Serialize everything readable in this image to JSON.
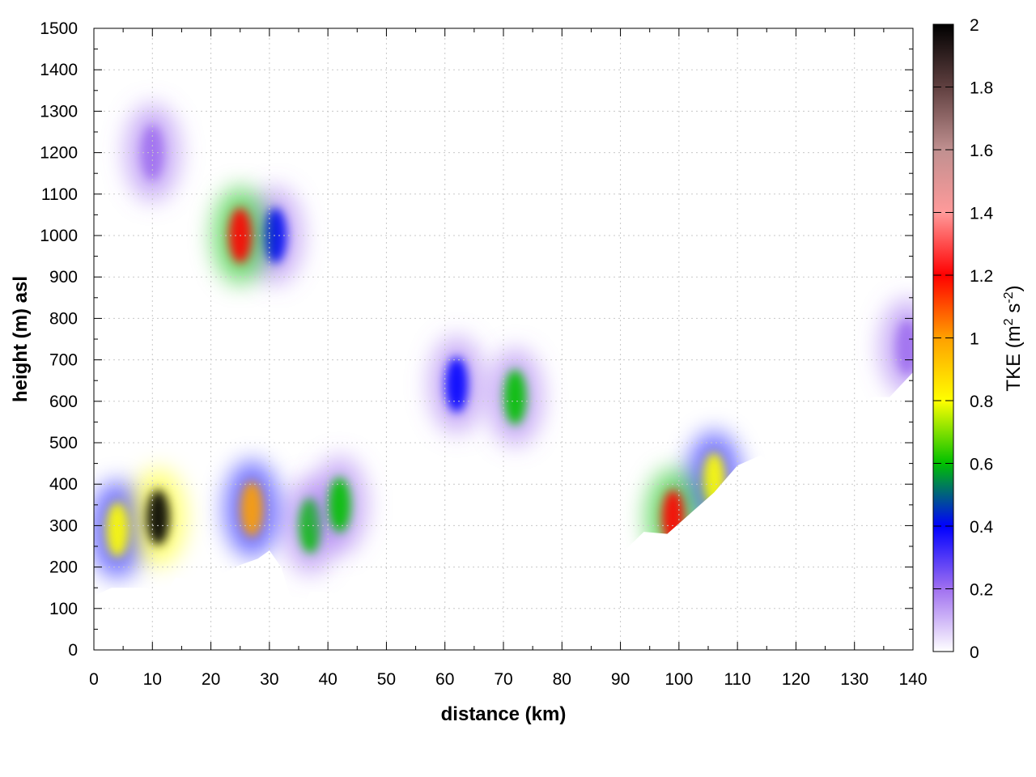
{
  "chart_data": {
    "type": "heatmap",
    "xlabel": "distance (km)",
    "ylabel": "height (m) asl",
    "colorbar_label": "TKE (m² s⁻²)",
    "colorbar_label_parts": {
      "base": "TKE (m",
      "sup1": "2",
      "mid": " s",
      "sup2": "-2",
      "end": ")"
    },
    "xlim": [
      0,
      140
    ],
    "ylim": [
      0,
      1500
    ],
    "clim": [
      0,
      2
    ],
    "x_ticks": [
      "0",
      "10",
      "20",
      "30",
      "40",
      "50",
      "60",
      "70",
      "80",
      "90",
      "100",
      "110",
      "120",
      "130",
      "140"
    ],
    "y_ticks": [
      "0",
      "100",
      "200",
      "300",
      "400",
      "500",
      "600",
      "700",
      "800",
      "900",
      "1000",
      "1100",
      "1200",
      "1300",
      "1400",
      "1500"
    ],
    "cb_ticks": [
      "0",
      "0.2",
      "0.4",
      "0.6",
      "0.8",
      "1",
      "1.2",
      "1.4",
      "1.6",
      "1.8",
      "2"
    ],
    "grid": true,
    "colormap": [
      {
        "v": 0.0,
        "color": "#ffffff"
      },
      {
        "v": 0.2,
        "color": "#a070f0"
      },
      {
        "v": 0.4,
        "color": "#0000ff"
      },
      {
        "v": 0.6,
        "color": "#00c000"
      },
      {
        "v": 0.8,
        "color": "#ffff00"
      },
      {
        "v": 1.0,
        "color": "#ffa000"
      },
      {
        "v": 1.2,
        "color": "#ff0000"
      },
      {
        "v": 1.4,
        "color": "#ff9a9a"
      },
      {
        "v": 1.6,
        "color": "#c09090"
      },
      {
        "v": 1.8,
        "color": "#604040"
      },
      {
        "v": 2.0,
        "color": "#000000"
      }
    ],
    "terrain_height_m": [
      [
        0,
        130
      ],
      [
        3,
        150
      ],
      [
        6,
        150
      ],
      [
        9,
        150
      ],
      [
        12,
        130
      ],
      [
        14,
        175
      ],
      [
        16,
        170
      ],
      [
        18,
        140
      ],
      [
        20,
        170
      ],
      [
        22,
        185
      ],
      [
        25,
        205
      ],
      [
        28,
        220
      ],
      [
        30,
        240
      ],
      [
        32,
        200
      ],
      [
        34,
        110
      ],
      [
        35,
        90
      ],
      [
        37,
        140
      ],
      [
        40,
        140
      ],
      [
        44,
        130
      ],
      [
        47,
        135
      ],
      [
        50,
        115
      ],
      [
        52,
        130
      ],
      [
        55,
        140
      ],
      [
        58,
        150
      ],
      [
        61,
        150
      ],
      [
        64,
        150
      ],
      [
        67,
        165
      ],
      [
        70,
        165
      ],
      [
        74,
        168
      ],
      [
        78,
        175
      ],
      [
        82,
        195
      ],
      [
        86,
        215
      ],
      [
        90,
        230
      ],
      [
        94,
        285
      ],
      [
        98,
        280
      ],
      [
        102,
        330
      ],
      [
        106,
        380
      ],
      [
        110,
        445
      ],
      [
        114,
        470
      ],
      [
        118,
        420
      ],
      [
        121,
        440
      ],
      [
        125,
        525
      ],
      [
        128,
        530
      ],
      [
        131,
        590
      ],
      [
        133,
        610
      ],
      [
        136,
        610
      ],
      [
        140,
        670
      ]
    ],
    "tke_features": [
      {
        "x_km": 11,
        "z_m": 320,
        "value": 2.0
      },
      {
        "x_km": 4,
        "z_m": 290,
        "value": 0.9
      },
      {
        "x_km": 25,
        "z_m": 1000,
        "value": 1.2
      },
      {
        "x_km": 27,
        "z_m": 340,
        "value": 1.0
      },
      {
        "x_km": 37,
        "z_m": 300,
        "value": 0.6
      },
      {
        "x_km": 42,
        "z_m": 350,
        "value": 0.6
      },
      {
        "x_km": 31,
        "z_m": 1000,
        "value": 0.4
      },
      {
        "x_km": 62,
        "z_m": 640,
        "value": 0.4
      },
      {
        "x_km": 72,
        "z_m": 610,
        "value": 0.55
      },
      {
        "x_km": 99,
        "z_m": 320,
        "value": 1.2
      },
      {
        "x_km": 106,
        "z_m": 410,
        "value": 0.9
      },
      {
        "x_km": 10,
        "z_m": 1200,
        "value": 0.2
      },
      {
        "x_km": 139,
        "z_m": 730,
        "value": 0.2
      }
    ]
  }
}
